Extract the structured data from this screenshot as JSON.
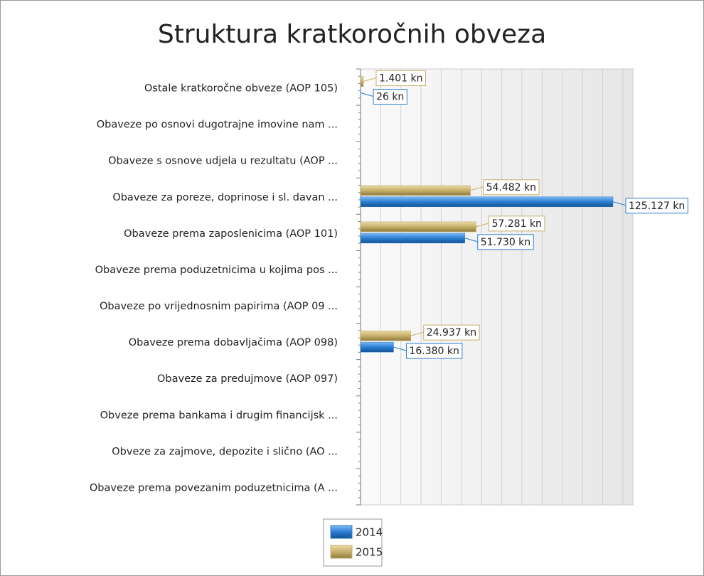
{
  "chart_data": {
    "type": "hbar",
    "title": "Struktura kratkoročnih obveza",
    "categories": [
      "Ostale kratkoročne obveze (AOP 105)",
      "Obaveze po osnovi dugotrajne imovine nam ...",
      "Obaveze s osnove udjela u rezultatu (AOP ...",
      "Obaveze za poreze, doprinose i sl. davan ...",
      "Obaveze prema zaposlenicima (AOP 101)",
      "Obaveze prema poduzetnicima u kojima pos ...",
      "Obaveze po vrijednosnim papirima (AOP 09 ...",
      "Obaveze prema dobavljačima (AOP 098)",
      "Obaveze za predujmove (AOP 097)",
      "Obveze prema bankama i drugim financijsk ...",
      "Obveze za zajmove, depozite i slično (AO ...",
      "Obaveze prema povezanim poduzetnicima (A ..."
    ],
    "series": [
      {
        "name": "2014",
        "color": "#2b7fd4",
        "values": [
          26,
          null,
          null,
          125127,
          51730,
          null,
          null,
          16380,
          null,
          null,
          null,
          null
        ],
        "value_labels": [
          "26 kn",
          null,
          null,
          "125.127 kn",
          "51.730 kn",
          null,
          null,
          "16.380 kn",
          null,
          null,
          null,
          null
        ]
      },
      {
        "name": "2015",
        "color": "#c8b06a",
        "values": [
          1401,
          null,
          null,
          54482,
          57281,
          null,
          null,
          24937,
          null,
          null,
          null,
          null
        ],
        "value_labels": [
          "1.401 kn",
          null,
          null,
          "54.482 kn",
          "57.281 kn",
          null,
          null,
          "24.937 kn",
          null,
          null,
          null,
          null
        ]
      }
    ],
    "xlim": [
      0,
      135000
    ],
    "xticks": [
      0,
      10000,
      20000,
      30000,
      40000,
      50000,
      60000,
      70000,
      80000,
      90000,
      100000,
      110000,
      120000,
      130000
    ],
    "grid": true
  }
}
